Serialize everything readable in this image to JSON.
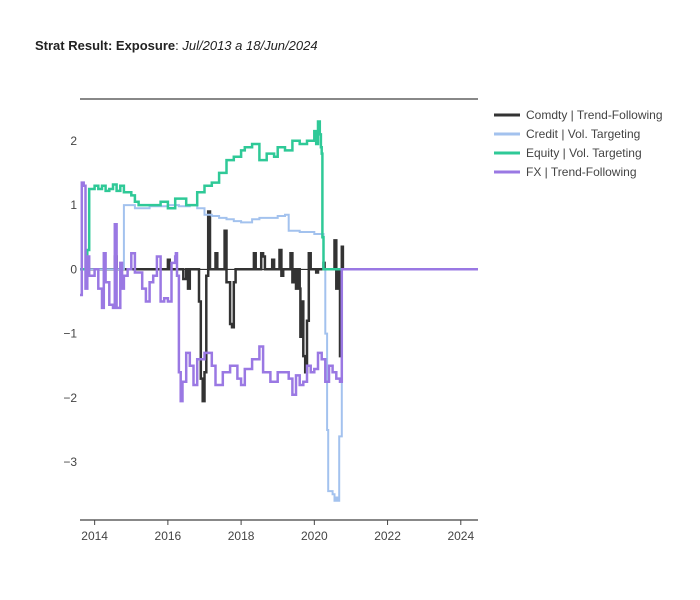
{
  "title_bold": "Strat Result: Exposure",
  "title_sep": ": ",
  "title_italic": "Jul/2013 a 18/Jun/2024",
  "chart_data": {
    "type": "line",
    "title": "Strat Result: Exposure: Jul/2013 a 18/Jun/2024",
    "xlabel": "",
    "ylabel": "",
    "xlim": [
      2013.6,
      2024.47
    ],
    "ylim": [
      -3.9,
      2.65
    ],
    "x_ticks": [
      2014,
      2016,
      2018,
      2020,
      2022,
      2024
    ],
    "y_ticks": [
      2,
      1,
      0,
      -1,
      -2,
      -3
    ],
    "y_tick_labels": [
      "2",
      "1",
      "0",
      "−1",
      "−2",
      "−3"
    ],
    "grid": false,
    "zero_line": true,
    "legend_position": "top-right",
    "series": [
      {
        "name": "Comdty | Trend-Following",
        "color": "#333333",
        "points": [
          [
            2013.6,
            0
          ],
          [
            2014.5,
            0
          ],
          [
            2014.55,
            0.2
          ],
          [
            2014.6,
            0
          ],
          [
            2015.9,
            0
          ],
          [
            2016.0,
            0.15
          ],
          [
            2016.05,
            0
          ],
          [
            2016.4,
            0
          ],
          [
            2016.42,
            -0.15
          ],
          [
            2016.5,
            0
          ],
          [
            2016.55,
            -0.3
          ],
          [
            2016.6,
            0
          ],
          [
            2016.8,
            0
          ],
          [
            2016.85,
            -0.5
          ],
          [
            2016.9,
            -1.7
          ],
          [
            2016.95,
            -2.05
          ],
          [
            2017.0,
            -1.6
          ],
          [
            2017.05,
            -0.1
          ],
          [
            2017.1,
            0.9
          ],
          [
            2017.15,
            0
          ],
          [
            2017.2,
            0
          ],
          [
            2017.3,
            0.25
          ],
          [
            2017.35,
            0
          ],
          [
            2017.5,
            0
          ],
          [
            2017.55,
            0.6
          ],
          [
            2017.6,
            -0.2
          ],
          [
            2017.7,
            -0.85
          ],
          [
            2017.75,
            -0.9
          ],
          [
            2017.8,
            -0.2
          ],
          [
            2017.85,
            0
          ],
          [
            2018.3,
            0
          ],
          [
            2018.35,
            0.25
          ],
          [
            2018.4,
            0
          ],
          [
            2018.5,
            0
          ],
          [
            2018.55,
            0.25
          ],
          [
            2018.6,
            0.2
          ],
          [
            2018.65,
            0
          ],
          [
            2018.8,
            0
          ],
          [
            2018.85,
            0.15
          ],
          [
            2018.9,
            0
          ],
          [
            2019.0,
            0
          ],
          [
            2019.05,
            0.3
          ],
          [
            2019.1,
            -0.1
          ],
          [
            2019.15,
            0
          ],
          [
            2019.3,
            0
          ],
          [
            2019.35,
            0.25
          ],
          [
            2019.4,
            -0.2
          ],
          [
            2019.45,
            0
          ],
          [
            2019.5,
            -0.3
          ],
          [
            2019.55,
            0
          ],
          [
            2019.6,
            -0.3
          ],
          [
            2019.62,
            -1.05
          ],
          [
            2019.65,
            -0.5
          ],
          [
            2019.7,
            -1.35
          ],
          [
            2019.75,
            -1.6
          ],
          [
            2019.8,
            -0.8
          ],
          [
            2019.85,
            0.25
          ],
          [
            2019.9,
            0
          ],
          [
            2020.0,
            0
          ],
          [
            2020.05,
            -0.05
          ],
          [
            2020.1,
            0
          ],
          [
            2020.2,
            0
          ],
          [
            2020.25,
            0.1
          ],
          [
            2020.28,
            0
          ],
          [
            2020.5,
            0
          ],
          [
            2020.55,
            0.45
          ],
          [
            2020.6,
            -0.3
          ],
          [
            2020.65,
            0
          ],
          [
            2020.7,
            -1.35
          ],
          [
            2020.72,
            0
          ],
          [
            2020.75,
            0.35
          ],
          [
            2020.78,
            0
          ],
          [
            2024.47,
            0
          ]
        ]
      },
      {
        "name": "Credit | Vol. Targeting",
        "color": "#a3c2ee",
        "points": [
          [
            2013.6,
            0
          ],
          [
            2014.7,
            0
          ],
          [
            2014.8,
            1.0
          ],
          [
            2015.0,
            1.0
          ],
          [
            2015.1,
            0.95
          ],
          [
            2015.5,
            0.98
          ],
          [
            2016.0,
            1.0
          ],
          [
            2016.3,
            0.98
          ],
          [
            2016.6,
            1.0
          ],
          [
            2016.8,
            0.95
          ],
          [
            2017.0,
            0.85
          ],
          [
            2017.2,
            0.83
          ],
          [
            2017.4,
            0.8
          ],
          [
            2017.6,
            0.78
          ],
          [
            2017.8,
            0.75
          ],
          [
            2018.0,
            0.73
          ],
          [
            2018.3,
            0.78
          ],
          [
            2018.5,
            0.8
          ],
          [
            2018.7,
            0.8
          ],
          [
            2019.0,
            0.83
          ],
          [
            2019.2,
            0.85
          ],
          [
            2019.3,
            0.6
          ],
          [
            2019.5,
            0.6
          ],
          [
            2019.6,
            0.58
          ],
          [
            2019.8,
            0.58
          ],
          [
            2020.0,
            0.55
          ],
          [
            2020.1,
            0.55
          ],
          [
            2020.2,
            0.55
          ],
          [
            2020.25,
            0
          ],
          [
            2020.3,
            -1.0
          ],
          [
            2020.35,
            -2.5
          ],
          [
            2020.38,
            -3.45
          ],
          [
            2020.5,
            -3.5
          ],
          [
            2020.55,
            -3.6
          ],
          [
            2020.6,
            -3.55
          ],
          [
            2020.65,
            -3.6
          ],
          [
            2020.68,
            -2.6
          ],
          [
            2020.72,
            -2.6
          ],
          [
            2020.75,
            0
          ],
          [
            2024.47,
            0
          ]
        ]
      },
      {
        "name": "Equity | Vol. Targeting",
        "color": "#2fc997",
        "points": [
          [
            2013.6,
            0
          ],
          [
            2013.75,
            0
          ],
          [
            2013.8,
            0.3
          ],
          [
            2013.85,
            1.25
          ],
          [
            2014.0,
            1.3
          ],
          [
            2014.1,
            1.25
          ],
          [
            2014.2,
            1.3
          ],
          [
            2014.3,
            1.22
          ],
          [
            2014.4,
            1.25
          ],
          [
            2014.5,
            1.32
          ],
          [
            2014.6,
            1.22
          ],
          [
            2014.7,
            1.3
          ],
          [
            2014.8,
            1.2
          ],
          [
            2014.9,
            1.2
          ],
          [
            2015.0,
            1.15
          ],
          [
            2015.1,
            1.05
          ],
          [
            2015.2,
            1.0
          ],
          [
            2015.5,
            1.0
          ],
          [
            2015.8,
            1.05
          ],
          [
            2016.0,
            0.95
          ],
          [
            2016.2,
            1.1
          ],
          [
            2016.5,
            1.0
          ],
          [
            2016.8,
            1.2
          ],
          [
            2017.0,
            1.3
          ],
          [
            2017.2,
            1.35
          ],
          [
            2017.4,
            1.5
          ],
          [
            2017.6,
            1.7
          ],
          [
            2017.8,
            1.75
          ],
          [
            2018.0,
            1.85
          ],
          [
            2018.1,
            1.9
          ],
          [
            2018.3,
            1.95
          ],
          [
            2018.5,
            1.7
          ],
          [
            2018.7,
            1.8
          ],
          [
            2018.9,
            1.75
          ],
          [
            2019.0,
            1.9
          ],
          [
            2019.2,
            1.85
          ],
          [
            2019.4,
            2.0
          ],
          [
            2019.6,
            1.95
          ],
          [
            2019.8,
            2.0
          ],
          [
            2020.0,
            2.15
          ],
          [
            2020.05,
            1.95
          ],
          [
            2020.1,
            2.3
          ],
          [
            2020.15,
            2.1
          ],
          [
            2020.18,
            1.9
          ],
          [
            2020.2,
            1.8
          ],
          [
            2020.22,
            0.5
          ],
          [
            2020.25,
            0
          ],
          [
            2024.47,
            0
          ]
        ]
      },
      {
        "name": "FX | Trend-Following",
        "color": "#9a78e3",
        "points": [
          [
            2013.6,
            -0.4
          ],
          [
            2013.65,
            1.35
          ],
          [
            2013.7,
            1.3
          ],
          [
            2013.75,
            -0.3
          ],
          [
            2013.8,
            0.2
          ],
          [
            2013.85,
            -0.1
          ],
          [
            2014.0,
            0.0
          ],
          [
            2014.1,
            -0.3
          ],
          [
            2014.2,
            -0.6
          ],
          [
            2014.25,
            0.25
          ],
          [
            2014.3,
            -0.2
          ],
          [
            2014.4,
            -0.55
          ],
          [
            2014.5,
            -0.6
          ],
          [
            2014.55,
            0.7
          ],
          [
            2014.6,
            -0.6
          ],
          [
            2014.7,
            0.1
          ],
          [
            2014.75,
            -0.3
          ],
          [
            2014.8,
            -0.1
          ],
          [
            2014.9,
            0
          ],
          [
            2015.0,
            0.25
          ],
          [
            2015.1,
            -0.05
          ],
          [
            2015.3,
            -0.3
          ],
          [
            2015.4,
            -0.5
          ],
          [
            2015.5,
            -0.2
          ],
          [
            2015.6,
            -0.1
          ],
          [
            2015.7,
            0.2
          ],
          [
            2015.8,
            -0.5
          ],
          [
            2015.9,
            -0.45
          ],
          [
            2016.0,
            -0.5
          ],
          [
            2016.1,
            0.1
          ],
          [
            2016.2,
            0.2
          ],
          [
            2016.22,
            0.25
          ],
          [
            2016.25,
            -0.1
          ],
          [
            2016.3,
            -1.6
          ],
          [
            2016.35,
            -2.05
          ],
          [
            2016.4,
            -1.75
          ],
          [
            2016.5,
            -1.3
          ],
          [
            2016.6,
            -1.5
          ],
          [
            2016.7,
            -1.8
          ],
          [
            2016.8,
            -1.4
          ],
          [
            2017.0,
            -1.3
          ],
          [
            2017.2,
            -1.5
          ],
          [
            2017.3,
            -1.8
          ],
          [
            2017.5,
            -1.6
          ],
          [
            2017.7,
            -1.5
          ],
          [
            2017.8,
            -1.5
          ],
          [
            2017.9,
            -1.7
          ],
          [
            2018.0,
            -1.8
          ],
          [
            2018.1,
            -1.55
          ],
          [
            2018.3,
            -1.4
          ],
          [
            2018.5,
            -1.2
          ],
          [
            2018.6,
            -1.6
          ],
          [
            2018.8,
            -1.75
          ],
          [
            2019.0,
            -1.6
          ],
          [
            2019.2,
            -1.6
          ],
          [
            2019.3,
            -1.7
          ],
          [
            2019.4,
            -1.95
          ],
          [
            2019.5,
            -1.65
          ],
          [
            2019.6,
            -1.8
          ],
          [
            2019.7,
            -1.75
          ],
          [
            2019.8,
            -1.5
          ],
          [
            2019.9,
            -1.6
          ],
          [
            2020.0,
            -1.55
          ],
          [
            2020.1,
            -1.3
          ],
          [
            2020.2,
            -1.4
          ],
          [
            2020.3,
            -1.75
          ],
          [
            2020.4,
            -1.5
          ],
          [
            2020.5,
            -1.6
          ],
          [
            2020.6,
            -1.7
          ],
          [
            2020.7,
            -1.75
          ],
          [
            2020.75,
            0
          ],
          [
            2024.47,
            0
          ]
        ]
      }
    ]
  }
}
